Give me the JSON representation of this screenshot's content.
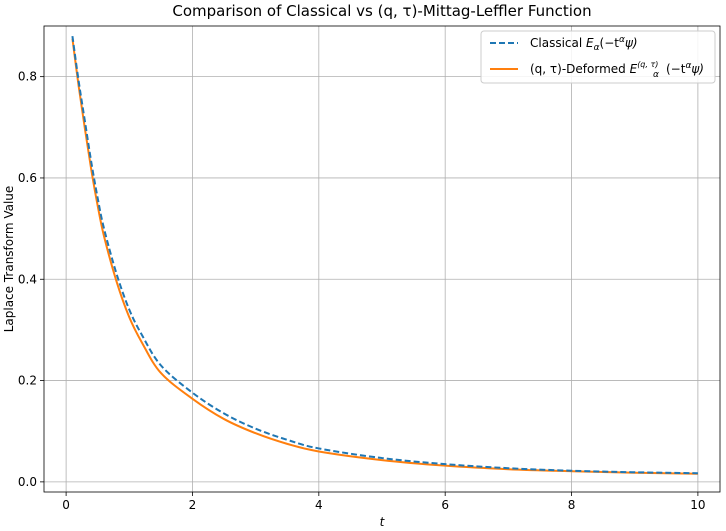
{
  "chart_data": {
    "type": "line",
    "title": "Comparison of Classical vs (q, τ)-Mittag-Leffler Function",
    "xlabel": "t",
    "ylabel": "Laplace Transform Value",
    "xlim": [
      -0.35,
      10.35
    ],
    "ylim": [
      -0.02,
      0.9
    ],
    "xticks": [
      0,
      2,
      4,
      6,
      8,
      10
    ],
    "yticks": [
      0.0,
      0.2,
      0.4,
      0.6,
      0.8
    ],
    "xtick_labels": [
      "0",
      "2",
      "4",
      "6",
      "8",
      "10"
    ],
    "ytick_labels": [
      "0.0",
      "0.2",
      "0.4",
      "0.6",
      "0.8"
    ],
    "grid": true,
    "legend_position": "top-right",
    "series": [
      {
        "name": "Classical E_α(−t^α ψ)",
        "legend_main": "Classical ",
        "legend_func": "E",
        "legend_sub": "α",
        "legend_tail": "(−t",
        "legend_exp": "α",
        "legend_end": "ψ)",
        "color": "#1f77b4",
        "dash": true,
        "x": [
          0.1,
          0.2,
          0.3,
          0.4,
          0.5,
          0.6,
          0.8,
          1.0,
          1.2,
          1.5,
          2.0,
          2.5,
          3.0,
          3.5,
          4.0,
          5.0,
          6.0,
          7.0,
          8.0,
          9.0,
          10.0
        ],
        "y": [
          0.88,
          0.79,
          0.71,
          0.63,
          0.56,
          0.5,
          0.41,
          0.34,
          0.29,
          0.23,
          0.176,
          0.135,
          0.105,
          0.083,
          0.066,
          0.047,
          0.035,
          0.027,
          0.022,
          0.019,
          0.017
        ]
      },
      {
        "name": "(q, τ)-Deformed E_α^(q,τ)(−t^α ψ)",
        "legend_main": "(q, τ)-Deformed ",
        "legend_func": "E",
        "legend_sub": "α",
        "legend_sup": "(q, τ)",
        "legend_tail": "(−t",
        "legend_exp": "α",
        "legend_end": "ψ)",
        "color": "#ff7f0e",
        "dash": false,
        "x": [
          0.1,
          0.2,
          0.3,
          0.4,
          0.5,
          0.6,
          0.8,
          1.0,
          1.2,
          1.5,
          2.0,
          2.5,
          3.0,
          3.5,
          4.0,
          5.0,
          6.0,
          7.0,
          8.0,
          9.0,
          10.0
        ],
        "y": [
          0.875,
          0.78,
          0.695,
          0.615,
          0.545,
          0.485,
          0.395,
          0.325,
          0.275,
          0.215,
          0.164,
          0.124,
          0.096,
          0.075,
          0.06,
          0.043,
          0.032,
          0.025,
          0.021,
          0.018,
          0.016
        ]
      }
    ]
  }
}
